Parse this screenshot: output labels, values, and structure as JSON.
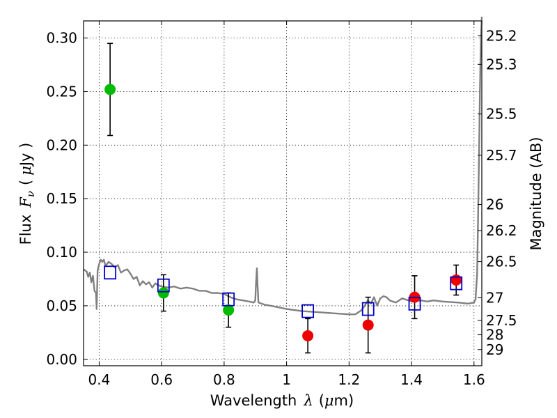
{
  "chart_data": {
    "type": "scatter",
    "xlabel_prefix": "Wavelength",
    "xlabel_symbol": "λ",
    "xlabel_unit_open": "(",
    "xlabel_unit_mu": "μ",
    "xlabel_unit_rest": "m)",
    "ylabel_prefix": "Flux",
    "ylabel_symbol": "F",
    "ylabel_sub": "ν",
    "ylabel_unit_open": "(",
    "ylabel_unit_mu": "μ",
    "ylabel_unit_rest": "Jy )",
    "y2label": "Magnitude (AB)",
    "xlim": [
      0.35,
      1.625
    ],
    "ylim": [
      -0.006,
      0.316
    ],
    "x_ticks": [
      {
        "value": 0.4,
        "label": "0.4"
      },
      {
        "value": 0.6,
        "label": "0.6"
      },
      {
        "value": 0.8,
        "label": "0.8"
      },
      {
        "value": 1.0,
        "label": "1"
      },
      {
        "value": 1.2,
        "label": "1.2"
      },
      {
        "value": 1.4,
        "label": "1.4"
      },
      {
        "value": 1.6,
        "label": "1.6"
      }
    ],
    "y_ticks": [
      {
        "value": 0.0,
        "label": "0.00"
      },
      {
        "value": 0.05,
        "label": "0.05"
      },
      {
        "value": 0.1,
        "label": "0.10"
      },
      {
        "value": 0.15,
        "label": "0.15"
      },
      {
        "value": 0.2,
        "label": "0.20"
      },
      {
        "value": 0.25,
        "label": "0.25"
      },
      {
        "value": 0.3,
        "label": "0.30"
      }
    ],
    "mag_ticks": [
      {
        "value": 25.2,
        "label": "25.2"
      },
      {
        "value": 25.3,
        "label": "25.3"
      },
      {
        "value": 25.5,
        "label": "25.5"
      },
      {
        "value": 25.7,
        "label": "25.7"
      },
      {
        "value": 26.0,
        "label": "26"
      },
      {
        "value": 26.2,
        "label": "26.2"
      },
      {
        "value": 26.5,
        "label": "26.5"
      },
      {
        "value": 27.0,
        "label": "27"
      },
      {
        "value": 27.5,
        "label": "27.5"
      },
      {
        "value": 28.0,
        "label": "28"
      },
      {
        "value": 29.0,
        "label": "29"
      }
    ],
    "grid": true,
    "colors": {
      "model": "#808080",
      "green_points": "#00bb00",
      "red_points": "#ee0000",
      "model_boxes": "#0000cc",
      "errorbar": "#000000"
    },
    "model_spectrum": {
      "x": [
        0.35,
        0.36,
        0.365,
        0.37,
        0.375,
        0.38,
        0.385,
        0.39,
        0.392,
        0.395,
        0.4,
        0.405,
        0.41,
        0.415,
        0.42,
        0.43,
        0.44,
        0.45,
        0.46,
        0.47,
        0.48,
        0.49,
        0.5,
        0.51,
        0.52,
        0.53,
        0.54,
        0.55,
        0.56,
        0.57,
        0.58,
        0.59,
        0.6,
        0.62,
        0.64,
        0.66,
        0.68,
        0.7,
        0.72,
        0.74,
        0.76,
        0.78,
        0.8,
        0.82,
        0.84,
        0.86,
        0.88,
        0.895,
        0.9,
        0.902,
        0.905,
        0.907,
        0.91,
        0.93,
        0.95,
        1.0,
        1.05,
        1.1,
        1.15,
        1.2,
        1.22,
        1.24,
        1.25,
        1.26,
        1.27,
        1.28,
        1.29,
        1.3,
        1.31,
        1.32,
        1.33,
        1.35,
        1.37,
        1.4,
        1.43,
        1.45,
        1.47,
        1.5,
        1.55,
        1.58,
        1.6,
        1.605,
        1.61,
        1.613,
        1.616,
        1.619,
        1.622,
        1.625
      ],
      "y": [
        0.084,
        0.082,
        0.077,
        0.081,
        0.072,
        0.078,
        0.064,
        0.062,
        0.047,
        0.083,
        0.089,
        0.093,
        0.091,
        0.093,
        0.087,
        0.091,
        0.089,
        0.086,
        0.088,
        0.081,
        0.083,
        0.084,
        0.08,
        0.075,
        0.077,
        0.069,
        0.073,
        0.07,
        0.072,
        0.067,
        0.071,
        0.069,
        0.068,
        0.067,
        0.068,
        0.066,
        0.067,
        0.066,
        0.064,
        0.064,
        0.062,
        0.062,
        0.061,
        0.058,
        0.056,
        0.055,
        0.054,
        0.053,
        0.055,
        0.07,
        0.085,
        0.07,
        0.053,
        0.051,
        0.05,
        0.047,
        0.045,
        0.044,
        0.043,
        0.042,
        0.042,
        0.046,
        0.05,
        0.055,
        0.052,
        0.058,
        0.05,
        0.057,
        0.059,
        0.058,
        0.055,
        0.053,
        0.057,
        0.054,
        0.055,
        0.054,
        0.055,
        0.054,
        0.053,
        0.052,
        0.053,
        0.056,
        0.08,
        0.13,
        0.19,
        0.25,
        0.3,
        0.32
      ]
    },
    "series": [
      {
        "marker": "circle",
        "color": "green",
        "points": [
          {
            "x": 0.435,
            "y": 0.252,
            "yerr": 0.043
          },
          {
            "x": 0.606,
            "y": 0.062,
            "yerr": 0.017
          },
          {
            "x": 0.814,
            "y": 0.046,
            "yerr": 0.016
          }
        ]
      },
      {
        "marker": "circle",
        "color": "red",
        "points": [
          {
            "x": 1.068,
            "y": 0.022,
            "yerr": 0.016
          },
          {
            "x": 1.261,
            "y": 0.032,
            "yerr": 0.026
          },
          {
            "x": 1.41,
            "y": 0.058,
            "yerr": 0.02
          },
          {
            "x": 1.543,
            "y": 0.074,
            "yerr": 0.014
          }
        ]
      },
      {
        "marker": "square",
        "color": "blue",
        "points": [
          {
            "x": 0.435,
            "y": 0.081
          },
          {
            "x": 0.606,
            "y": 0.069
          },
          {
            "x": 0.814,
            "y": 0.056
          },
          {
            "x": 1.068,
            "y": 0.045
          },
          {
            "x": 1.261,
            "y": 0.047
          },
          {
            "x": 1.41,
            "y": 0.052
          },
          {
            "x": 1.543,
            "y": 0.071
          }
        ]
      }
    ]
  }
}
